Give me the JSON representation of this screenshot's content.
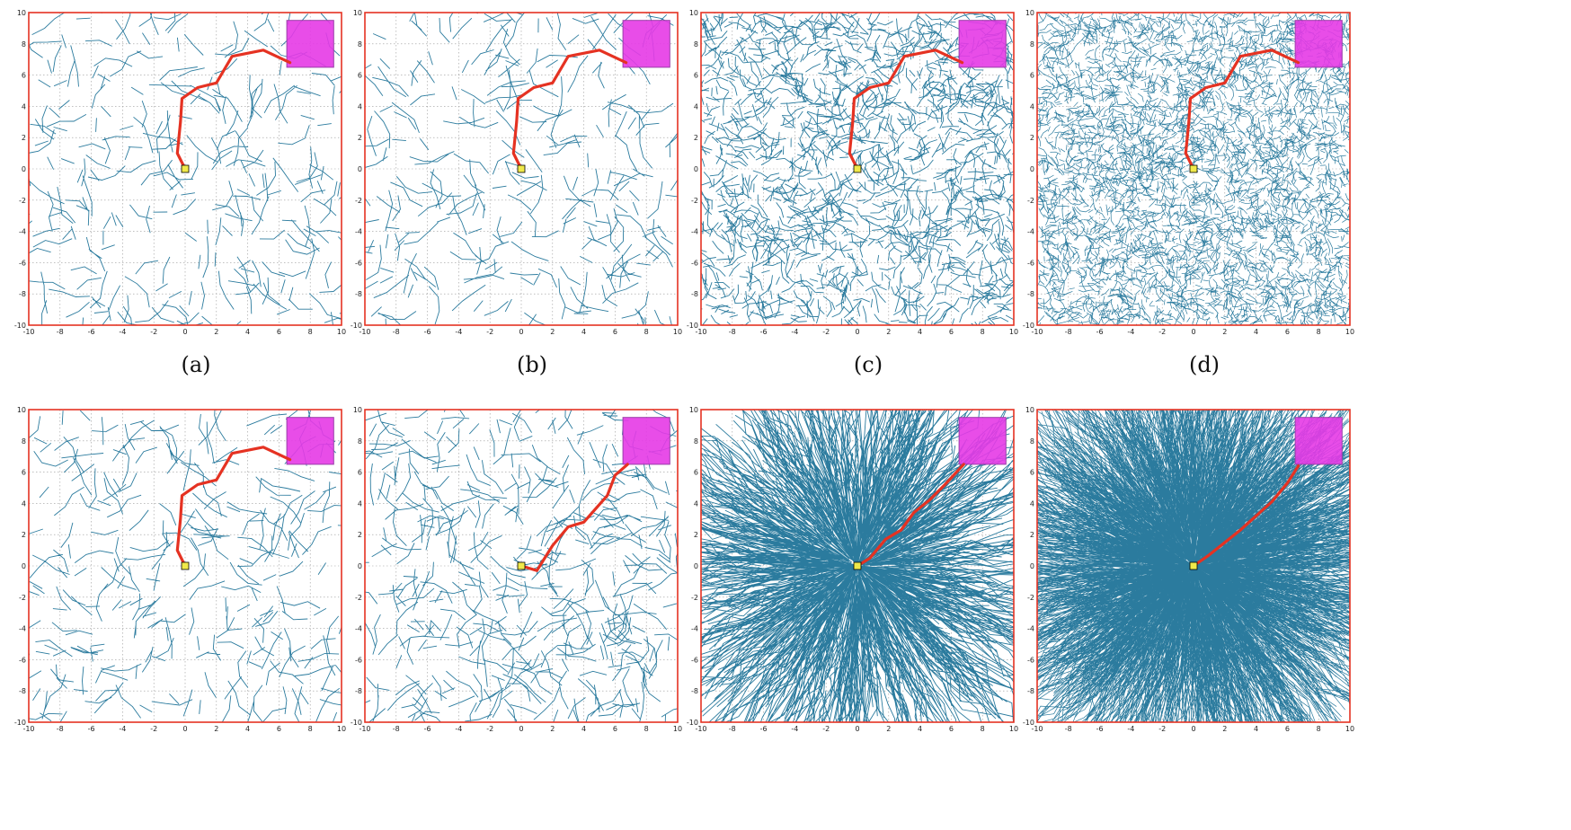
{
  "figure": {
    "captions": [
      "(a)",
      "(b)",
      "(c)",
      "(d)"
    ],
    "axis": {
      "xlim": [
        -10,
        10
      ],
      "ylim": [
        -10,
        10
      ],
      "xticks": [
        -10,
        -8,
        -6,
        -4,
        -2,
        0,
        2,
        4,
        6,
        8,
        10
      ],
      "yticks": [
        -10,
        -8,
        -6,
        -4,
        -2,
        0,
        2,
        4,
        6,
        8,
        10
      ],
      "grid": true
    },
    "start": [
      0,
      0
    ],
    "goal_region": {
      "x": [
        6.5,
        9.5
      ],
      "y": [
        6.5,
        9.5
      ]
    },
    "colors": {
      "tree": "#2b7b9e",
      "path": "#e53222",
      "goal": "#e63ae6",
      "goal_edge": "#9a3fa8",
      "start": "#f0e94a",
      "border": "#e53222",
      "grid": "#9a9a9a"
    },
    "panels": [
      {
        "id": "top-1",
        "row": 0,
        "col": 0,
        "density": "sparse",
        "tree_style": "random",
        "path": [
          [
            0,
            0
          ],
          [
            -0.5,
            1
          ],
          [
            -0.3,
            3
          ],
          [
            -0.2,
            4.5
          ],
          [
            0.8,
            5.2
          ],
          [
            2,
            5.5
          ],
          [
            3,
            7.2
          ],
          [
            5,
            7.6
          ],
          [
            6.7,
            6.8
          ]
        ]
      },
      {
        "id": "top-2",
        "row": 0,
        "col": 1,
        "density": "sparse",
        "tree_style": "random",
        "path": [
          [
            0,
            0
          ],
          [
            -0.5,
            1
          ],
          [
            -0.3,
            3
          ],
          [
            -0.2,
            4.5
          ],
          [
            0.8,
            5.2
          ],
          [
            2,
            5.5
          ],
          [
            3,
            7.2
          ],
          [
            5,
            7.6
          ],
          [
            6.7,
            6.8
          ]
        ]
      },
      {
        "id": "top-3",
        "row": 0,
        "col": 2,
        "density": "dense",
        "tree_style": "random",
        "path": [
          [
            0,
            0
          ],
          [
            -0.5,
            1
          ],
          [
            -0.3,
            3
          ],
          [
            -0.2,
            4.5
          ],
          [
            0.8,
            5.2
          ],
          [
            2,
            5.5
          ],
          [
            3,
            7.2
          ],
          [
            5,
            7.6
          ],
          [
            6.7,
            6.8
          ]
        ]
      },
      {
        "id": "top-4",
        "row": 0,
        "col": 3,
        "density": "very-dense",
        "tree_style": "random",
        "path": [
          [
            0,
            0
          ],
          [
            -0.5,
            1
          ],
          [
            -0.3,
            3
          ],
          [
            -0.2,
            4.5
          ],
          [
            0.8,
            5.2
          ],
          [
            2,
            5.5
          ],
          [
            3,
            7.2
          ],
          [
            5,
            7.6
          ],
          [
            6.7,
            6.8
          ]
        ]
      },
      {
        "id": "bottom-1",
        "row": 1,
        "col": 0,
        "density": "sparse",
        "tree_style": "random",
        "path": [
          [
            0,
            0
          ],
          [
            -0.5,
            1
          ],
          [
            -0.3,
            3
          ],
          [
            -0.2,
            4.5
          ],
          [
            0.8,
            5.2
          ],
          [
            2,
            5.5
          ],
          [
            3,
            7.2
          ],
          [
            5,
            7.6
          ],
          [
            6.7,
            6.8
          ]
        ]
      },
      {
        "id": "bottom-2",
        "row": 1,
        "col": 1,
        "density": "medium",
        "tree_style": "random",
        "path": [
          [
            0,
            0
          ],
          [
            1,
            -0.3
          ],
          [
            2,
            1.3
          ],
          [
            3,
            2.5
          ],
          [
            4,
            2.8
          ],
          [
            5.5,
            4.5
          ],
          [
            6,
            5.8
          ],
          [
            6.8,
            6.5
          ]
        ]
      },
      {
        "id": "bottom-3",
        "row": 1,
        "col": 2,
        "density": "dense",
        "tree_style": "radial",
        "path": [
          [
            0,
            0
          ],
          [
            0.8,
            0.5
          ],
          [
            1.8,
            1.7
          ],
          [
            2.8,
            2.3
          ],
          [
            3.6,
            3.4
          ],
          [
            4.6,
            4.2
          ],
          [
            5.6,
            5.2
          ],
          [
            6.8,
            6.5
          ]
        ]
      },
      {
        "id": "bottom-4",
        "row": 1,
        "col": 3,
        "density": "very-dense",
        "tree_style": "radial",
        "path": [
          [
            0,
            0
          ],
          [
            1,
            0.7
          ],
          [
            2,
            1.5
          ],
          [
            3,
            2.3
          ],
          [
            4,
            3.2
          ],
          [
            5,
            4.1
          ],
          [
            6,
            5.3
          ],
          [
            6.7,
            6.4
          ]
        ]
      }
    ]
  }
}
